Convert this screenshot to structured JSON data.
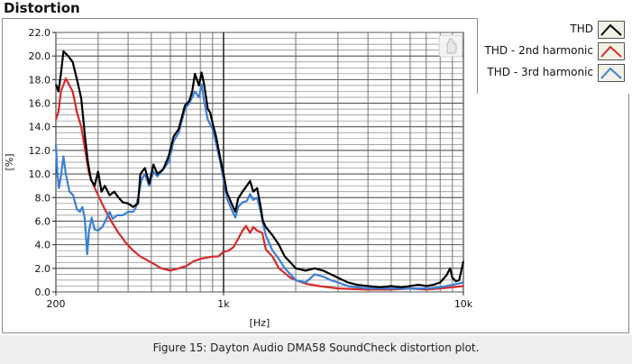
{
  "panel": {
    "title": "Distortion"
  },
  "caption": "Figure 15: Dayton Audio DMA58 SoundCheck distortion plot.",
  "icons": {
    "graph_tool": "hand-tool-icon"
  },
  "chart_data": {
    "type": "line",
    "xlabel": "[Hz]",
    "ylabel": "[%]",
    "xscale": "log",
    "xlim": [
      200,
      10000
    ],
    "ylim": [
      0,
      22
    ],
    "grid": true,
    "legend_position": "top-right",
    "x_ticks": [
      {
        "value": 200,
        "label": "200"
      },
      {
        "value": 1000,
        "label": "1k"
      },
      {
        "value": 10000,
        "label": "10k"
      }
    ],
    "y_ticks": [
      {
        "value": 0,
        "label": "0.0"
      },
      {
        "value": 2,
        "label": "2.0"
      },
      {
        "value": 4,
        "label": "4.0"
      },
      {
        "value": 6,
        "label": "6.0"
      },
      {
        "value": 8,
        "label": "8.0"
      },
      {
        "value": 10,
        "label": "10.0"
      },
      {
        "value": 12,
        "label": "12.0"
      },
      {
        "value": 14,
        "label": "14.0"
      },
      {
        "value": 16,
        "label": "16.0"
      },
      {
        "value": 18,
        "label": "18.0"
      },
      {
        "value": 20,
        "label": "20.0"
      },
      {
        "value": 22,
        "label": "22.0"
      }
    ],
    "series": [
      {
        "name": "THD",
        "color": "#000000",
        "points": [
          [
            200,
            17.6
          ],
          [
            205,
            17.0
          ],
          [
            210,
            18.5
          ],
          [
            215,
            20.4
          ],
          [
            225,
            20.0
          ],
          [
            235,
            19.5
          ],
          [
            245,
            18.0
          ],
          [
            255,
            16.4
          ],
          [
            265,
            13.0
          ],
          [
            272,
            11.0
          ],
          [
            280,
            9.5
          ],
          [
            290,
            9.0
          ],
          [
            300,
            10.2
          ],
          [
            310,
            8.5
          ],
          [
            320,
            9.0
          ],
          [
            335,
            8.2
          ],
          [
            350,
            8.5
          ],
          [
            365,
            8.0
          ],
          [
            380,
            7.6
          ],
          [
            400,
            7.5
          ],
          [
            420,
            7.2
          ],
          [
            440,
            7.5
          ],
          [
            450,
            10.0
          ],
          [
            470,
            10.5
          ],
          [
            490,
            9.2
          ],
          [
            510,
            10.8
          ],
          [
            530,
            10.0
          ],
          [
            560,
            10.4
          ],
          [
            590,
            11.5
          ],
          [
            620,
            13.2
          ],
          [
            650,
            13.8
          ],
          [
            690,
            15.8
          ],
          [
            720,
            16.2
          ],
          [
            740,
            17.0
          ],
          [
            760,
            18.5
          ],
          [
            790,
            17.5
          ],
          [
            810,
            18.6
          ],
          [
            830,
            17.6
          ],
          [
            860,
            15.5
          ],
          [
            880,
            15.2
          ],
          [
            900,
            14.3
          ],
          [
            930,
            13.2
          ],
          [
            970,
            11.3
          ],
          [
            1000,
            10.0
          ],
          [
            1030,
            8.5
          ],
          [
            1080,
            7.5
          ],
          [
            1120,
            6.8
          ],
          [
            1150,
            7.9
          ],
          [
            1200,
            8.5
          ],
          [
            1250,
            9.0
          ],
          [
            1290,
            9.4
          ],
          [
            1330,
            8.5
          ],
          [
            1380,
            8.8
          ],
          [
            1420,
            7.5
          ],
          [
            1460,
            6.0
          ],
          [
            1500,
            5.5
          ],
          [
            1600,
            4.8
          ],
          [
            1700,
            4.0
          ],
          [
            1800,
            3.0
          ],
          [
            1900,
            2.5
          ],
          [
            2000,
            2.0
          ],
          [
            2200,
            1.8
          ],
          [
            2400,
            2.0
          ],
          [
            2600,
            1.8
          ],
          [
            2800,
            1.5
          ],
          [
            3000,
            1.2
          ],
          [
            3300,
            0.8
          ],
          [
            3600,
            0.6
          ],
          [
            4000,
            0.5
          ],
          [
            4500,
            0.4
          ],
          [
            5000,
            0.5
          ],
          [
            5500,
            0.4
          ],
          [
            6000,
            0.5
          ],
          [
            6500,
            0.6
          ],
          [
            7000,
            0.5
          ],
          [
            7500,
            0.6
          ],
          [
            8000,
            0.8
          ],
          [
            8500,
            1.4
          ],
          [
            8800,
            2.0
          ],
          [
            9000,
            1.2
          ],
          [
            9300,
            0.9
          ],
          [
            9600,
            1.0
          ],
          [
            10000,
            2.6
          ]
        ]
      },
      {
        "name": "THD - 2nd harmonic",
        "color": "#d62a2a",
        "points": [
          [
            200,
            14.6
          ],
          [
            205,
            15.3
          ],
          [
            210,
            17.0
          ],
          [
            220,
            18.1
          ],
          [
            235,
            17.0
          ],
          [
            245,
            15.2
          ],
          [
            255,
            14.0
          ],
          [
            265,
            12.0
          ],
          [
            275,
            10.0
          ],
          [
            285,
            9.2
          ],
          [
            300,
            8.2
          ],
          [
            320,
            7.0
          ],
          [
            340,
            6.0
          ],
          [
            365,
            5.0
          ],
          [
            390,
            4.2
          ],
          [
            420,
            3.5
          ],
          [
            450,
            3.0
          ],
          [
            500,
            2.5
          ],
          [
            550,
            2.0
          ],
          [
            600,
            1.8
          ],
          [
            650,
            2.0
          ],
          [
            700,
            2.2
          ],
          [
            750,
            2.6
          ],
          [
            800,
            2.8
          ],
          [
            850,
            2.9
          ],
          [
            900,
            3.0
          ],
          [
            950,
            3.0
          ],
          [
            1000,
            3.4
          ],
          [
            1050,
            3.5
          ],
          [
            1100,
            3.8
          ],
          [
            1150,
            4.5
          ],
          [
            1200,
            5.2
          ],
          [
            1240,
            5.6
          ],
          [
            1290,
            5.0
          ],
          [
            1330,
            5.5
          ],
          [
            1380,
            5.2
          ],
          [
            1450,
            5.0
          ],
          [
            1500,
            3.6
          ],
          [
            1600,
            3.0
          ],
          [
            1700,
            2.0
          ],
          [
            1800,
            1.6
          ],
          [
            1900,
            1.2
          ],
          [
            2000,
            1.0
          ],
          [
            2200,
            0.7
          ],
          [
            2500,
            0.5
          ],
          [
            3000,
            0.3
          ],
          [
            4000,
            0.2
          ],
          [
            5000,
            0.2
          ],
          [
            6000,
            0.3
          ],
          [
            7000,
            0.2
          ],
          [
            8000,
            0.3
          ],
          [
            9000,
            0.4
          ],
          [
            10000,
            0.5
          ]
        ]
      },
      {
        "name": "THD - 3rd harmonic",
        "color": "#3a7fd5",
        "points": [
          [
            200,
            12.5
          ],
          [
            203,
            10.0
          ],
          [
            206,
            8.8
          ],
          [
            210,
            9.8
          ],
          [
            215,
            11.5
          ],
          [
            220,
            10.0
          ],
          [
            228,
            8.5
          ],
          [
            236,
            8.2
          ],
          [
            245,
            7.0
          ],
          [
            252,
            6.8
          ],
          [
            258,
            7.2
          ],
          [
            264,
            6.2
          ],
          [
            270,
            3.2
          ],
          [
            275,
            5.2
          ],
          [
            282,
            6.3
          ],
          [
            290,
            5.3
          ],
          [
            300,
            5.2
          ],
          [
            312,
            5.5
          ],
          [
            325,
            6.2
          ],
          [
            335,
            6.8
          ],
          [
            345,
            6.2
          ],
          [
            360,
            6.5
          ],
          [
            380,
            6.5
          ],
          [
            400,
            6.8
          ],
          [
            420,
            6.8
          ],
          [
            430,
            7.1
          ],
          [
            440,
            8.0
          ],
          [
            455,
            9.5
          ],
          [
            470,
            10.0
          ],
          [
            490,
            9.0
          ],
          [
            510,
            10.2
          ],
          [
            530,
            9.8
          ],
          [
            560,
            10.4
          ],
          [
            590,
            11.0
          ],
          [
            620,
            12.8
          ],
          [
            650,
            13.5
          ],
          [
            690,
            15.5
          ],
          [
            720,
            16.0
          ],
          [
            740,
            16.5
          ],
          [
            760,
            17.0
          ],
          [
            790,
            16.5
          ],
          [
            810,
            17.6
          ],
          [
            830,
            16.2
          ],
          [
            860,
            14.6
          ],
          [
            880,
            14.2
          ],
          [
            900,
            13.8
          ],
          [
            930,
            12.6
          ],
          [
            970,
            11.0
          ],
          [
            1000,
            9.5
          ],
          [
            1030,
            8.0
          ],
          [
            1080,
            7.0
          ],
          [
            1120,
            6.3
          ],
          [
            1150,
            7.2
          ],
          [
            1200,
            7.6
          ],
          [
            1250,
            7.7
          ],
          [
            1290,
            8.3
          ],
          [
            1330,
            7.8
          ],
          [
            1380,
            8.0
          ],
          [
            1420,
            7.0
          ],
          [
            1460,
            5.8
          ],
          [
            1500,
            4.8
          ],
          [
            1600,
            3.5
          ],
          [
            1700,
            2.8
          ],
          [
            1800,
            2.0
          ],
          [
            1900,
            1.5
          ],
          [
            2000,
            1.0
          ],
          [
            2200,
            0.8
          ],
          [
            2400,
            1.5
          ],
          [
            2600,
            1.3
          ],
          [
            2800,
            1.0
          ],
          [
            3000,
            0.8
          ],
          [
            3300,
            0.5
          ],
          [
            3600,
            0.4
          ],
          [
            4000,
            0.3
          ],
          [
            5000,
            0.3
          ],
          [
            6000,
            0.3
          ],
          [
            7000,
            0.3
          ],
          [
            8000,
            0.4
          ],
          [
            9000,
            0.6
          ],
          [
            10000,
            0.8
          ]
        ]
      }
    ]
  }
}
